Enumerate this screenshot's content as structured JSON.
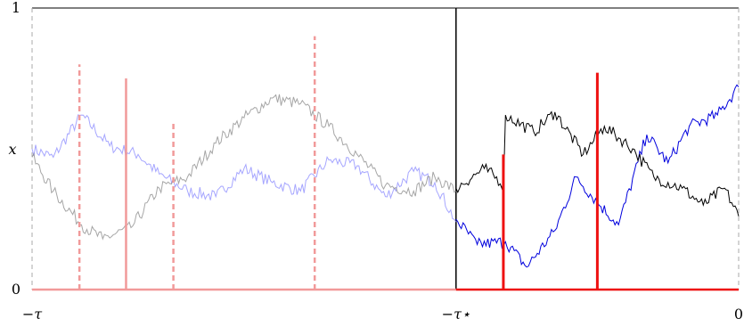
{
  "chart_data": {
    "type": "line",
    "title": "",
    "xlabel": "",
    "ylabel": "x",
    "ylim": [
      0,
      1
    ],
    "x_tick_labels": [
      "−τ",
      "−τ⋆",
      "0"
    ],
    "y_tick_labels": [
      "0",
      "1"
    ],
    "x_domain": [
      -1,
      0
    ],
    "tau_star_position": -0.4,
    "series": [
      {
        "color": "#8888ff",
        "faded": true,
        "segment": [
          -1,
          -0.4
        ],
        "path": [
          [
            -1,
            0.5
          ],
          [
            -0.97,
            0.47
          ],
          [
            -0.93,
            0.62
          ],
          [
            -0.89,
            0.51
          ],
          [
            -0.85,
            0.48
          ],
          [
            -0.82,
            0.41
          ],
          [
            -0.78,
            0.35
          ],
          [
            -0.74,
            0.33
          ],
          [
            -0.7,
            0.43
          ],
          [
            -0.66,
            0.38
          ],
          [
            -0.62,
            0.35
          ],
          [
            -0.58,
            0.46
          ],
          [
            -0.54,
            0.44
          ],
          [
            -0.5,
            0.33
          ],
          [
            -0.46,
            0.42
          ],
          [
            -0.43,
            0.38
          ],
          [
            -0.4,
            0.24
          ]
        ]
      },
      {
        "color": "#888888",
        "faded": true,
        "segment": [
          -1,
          -0.4
        ],
        "path": [
          [
            -1,
            0.47
          ],
          [
            -0.97,
            0.35
          ],
          [
            -0.93,
            0.23
          ],
          [
            -0.9,
            0.18
          ],
          [
            -0.86,
            0.22
          ],
          [
            -0.82,
            0.36
          ],
          [
            -0.78,
            0.4
          ],
          [
            -0.74,
            0.52
          ],
          [
            -0.7,
            0.61
          ],
          [
            -0.66,
            0.68
          ],
          [
            -0.62,
            0.66
          ],
          [
            -0.58,
            0.58
          ],
          [
            -0.54,
            0.48
          ],
          [
            -0.5,
            0.37
          ],
          [
            -0.46,
            0.35
          ],
          [
            -0.43,
            0.4
          ],
          [
            -0.4,
            0.35
          ]
        ]
      },
      {
        "color": "#0000dd",
        "faded": false,
        "segment": [
          -0.4,
          0
        ],
        "path": [
          [
            -0.4,
            0.25
          ],
          [
            -0.37,
            0.16
          ],
          [
            -0.33,
            0.17
          ],
          [
            -0.3,
            0.08
          ],
          [
            -0.26,
            0.21
          ],
          [
            -0.23,
            0.4
          ],
          [
            -0.2,
            0.31
          ],
          [
            -0.17,
            0.23
          ],
          [
            -0.13,
            0.55
          ],
          [
            -0.1,
            0.45
          ],
          [
            -0.07,
            0.58
          ],
          [
            -0.03,
            0.62
          ],
          [
            0,
            0.72
          ]
        ]
      },
      {
        "color": "#000000",
        "faded": false,
        "segment": [
          -0.4,
          0
        ],
        "path": [
          [
            -0.4,
            0.36
          ],
          [
            -0.36,
            0.43
          ],
          [
            -0.33,
            0.37
          ],
          [
            -0.33,
            0.62
          ],
          [
            -0.29,
            0.56
          ],
          [
            -0.26,
            0.63
          ],
          [
            -0.22,
            0.48
          ],
          [
            -0.19,
            0.58
          ],
          [
            -0.15,
            0.5
          ],
          [
            -0.12,
            0.4
          ],
          [
            -0.08,
            0.36
          ],
          [
            -0.05,
            0.3
          ],
          [
            -0.02,
            0.36
          ],
          [
            0,
            0.26
          ]
        ]
      }
    ],
    "impulses": [
      {
        "x": -0.933,
        "height": 0.8,
        "style": "dashed",
        "faded": true
      },
      {
        "x": -0.867,
        "height": 0.75,
        "style": "solid",
        "faded": true
      },
      {
        "x": -0.8,
        "height": 0.6,
        "style": "dashed",
        "faded": true
      },
      {
        "x": -0.6,
        "height": 0.9,
        "style": "dashed",
        "faded": true
      },
      {
        "x": -0.333,
        "height": 0.48,
        "style": "solid",
        "faded": false
      },
      {
        "x": -0.2,
        "height": 0.77,
        "style": "solid",
        "faded": false
      }
    ],
    "grid": false
  }
}
